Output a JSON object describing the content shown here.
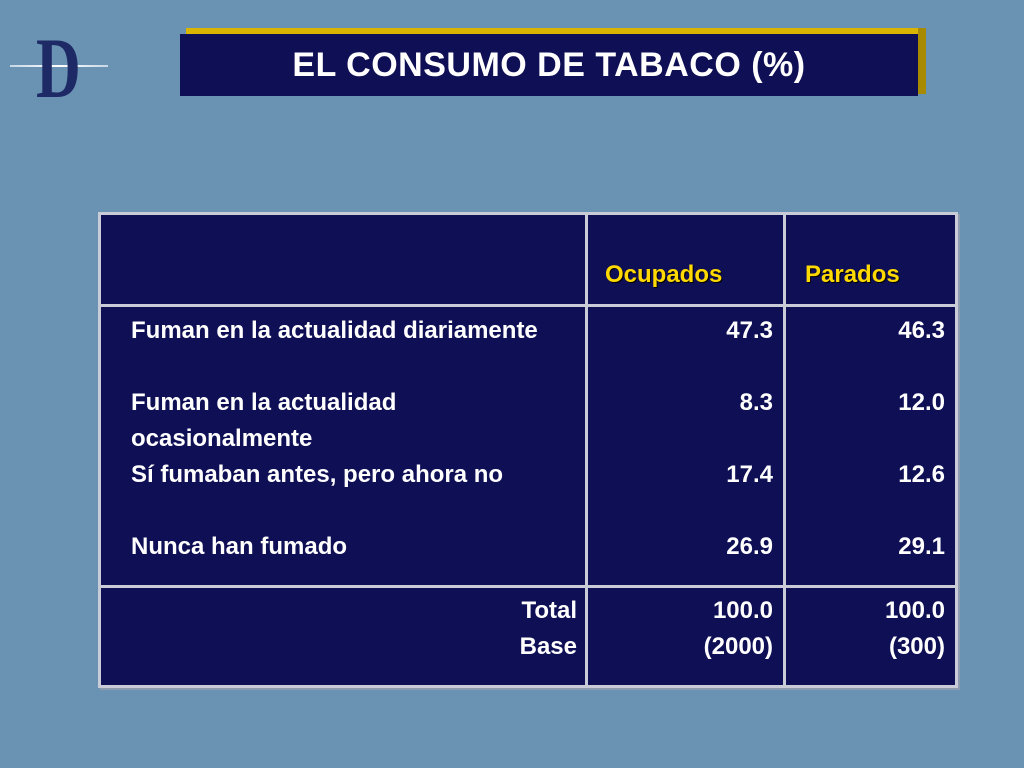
{
  "logo": {
    "letter": "D"
  },
  "title": "EL CONSUMO DE TABACO (%)",
  "table": {
    "columns": [
      "Ocupados",
      "Parados"
    ],
    "rows": [
      {
        "label": "Fuman en la actualidad diariamente",
        "ocupados": "47.3",
        "parados": "46.3"
      },
      {
        "label": "Fuman en la actualidad ocasionalmente",
        "ocupados": "8.3",
        "parados": "12.0"
      },
      {
        "label": "Sí fumaban antes, pero ahora no",
        "ocupados": "17.4",
        "parados": "12.6"
      },
      {
        "label": "Nunca han fumado",
        "ocupados": "26.9",
        "parados": "29.1"
      }
    ],
    "footer": {
      "total_label": "Total",
      "base_label": "Base",
      "ocupados_total": "100.0",
      "parados_total": "100.0",
      "ocupados_base": "(2000)",
      "parados_base": "(300)"
    }
  },
  "colors": {
    "background": "#6a93b3",
    "panel": "#0f0f55",
    "header_text": "#ffd900",
    "title_accent": "#d9b400"
  }
}
